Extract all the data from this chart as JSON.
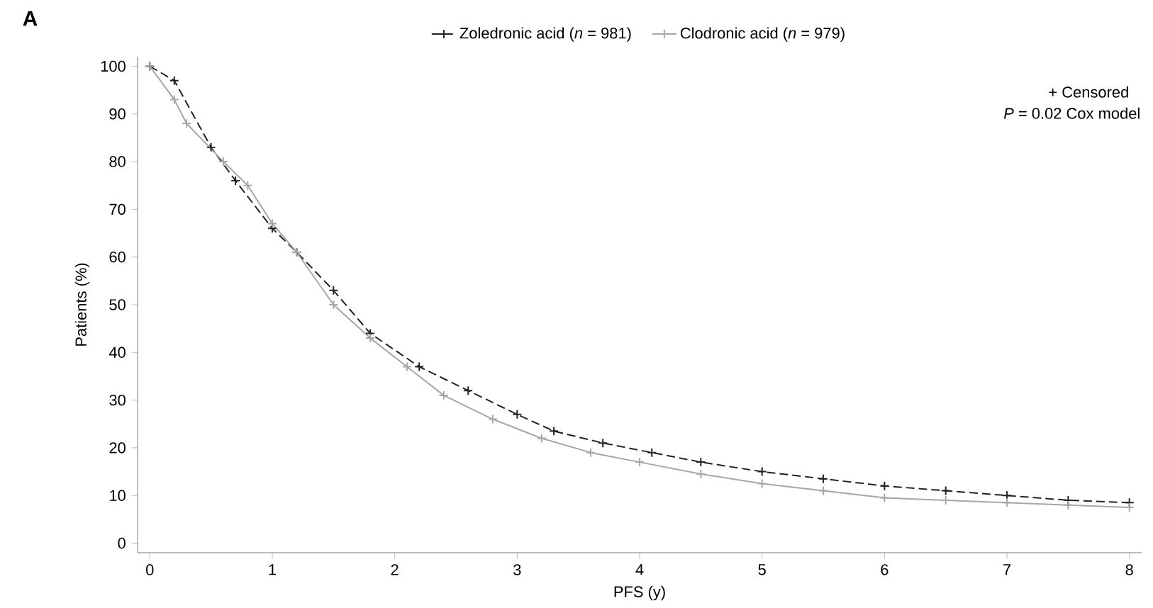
{
  "chart_data": {
    "type": "line",
    "xlabel": "PFS (y)",
    "ylabel": "Patients (%)",
    "annotations": [
      "A",
      "+ Censored",
      "*P* = 0.02 Cox model"
    ],
    "xlim": [
      -0.1,
      8.1
    ],
    "ylim": [
      -2,
      102
    ],
    "xticks": [
      0,
      1,
      2,
      3,
      4,
      5,
      6,
      7,
      8
    ],
    "yticks": [
      0,
      10,
      20,
      30,
      40,
      50,
      60,
      70,
      80,
      90,
      100
    ],
    "grid": false,
    "legend": "top",
    "marker": "cross",
    "series": [
      {
        "name": "Zoledronic acid (*n* = 981)",
        "color": "#222222",
        "line_style": "dashed",
        "x": [
          0,
          0.2,
          0.5,
          0.7,
          1,
          1.2,
          1.5,
          1.8,
          2.2,
          2.6,
          3,
          3.3,
          3.7,
          4.1,
          4.5,
          5,
          5.5,
          6,
          6.5,
          7,
          7.5,
          8
        ],
        "values": [
          100,
          97,
          83,
          76,
          66,
          61,
          53,
          44,
          37,
          32,
          27,
          23.5,
          21,
          19,
          17,
          15,
          13.5,
          12,
          11,
          10,
          9,
          8.5
        ]
      },
      {
        "name": "Clodronic acid (*n* = 979)",
        "color": "#a6a6a6",
        "line_style": "solid",
        "x": [
          0,
          0.2,
          0.3,
          0.6,
          0.8,
          1,
          1.2,
          1.5,
          1.8,
          2.1,
          2.4,
          2.8,
          3.2,
          3.6,
          4,
          4.5,
          5,
          5.5,
          6,
          6.5,
          7,
          7.5,
          8
        ],
        "values": [
          100,
          93,
          88,
          80,
          75,
          67,
          61,
          50,
          43,
          37,
          31,
          26,
          22,
          19,
          17,
          14.5,
          12.5,
          11,
          9.5,
          9,
          8.5,
          8,
          7.5
        ]
      }
    ]
  }
}
